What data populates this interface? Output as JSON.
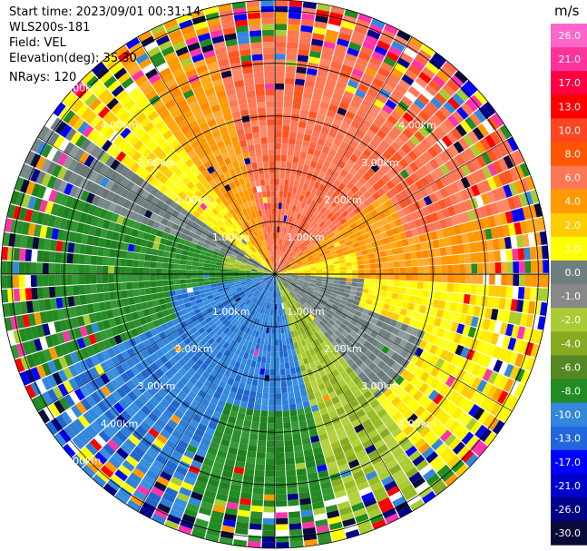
{
  "header": {
    "start_time": "Start time: 2023/09/01 00:31:14",
    "instrument": "WLS200s-181",
    "field": "Field: VEL",
    "elevation": "Elevation(deg): 35.30",
    "nrays": "NRays: 120"
  },
  "plot": {
    "n_rays": 120,
    "range_km_max": 5.2,
    "range_rings_km": [
      1,
      2,
      3,
      4,
      5
    ],
    "ring_label_format": "{v}.00km"
  },
  "colorbar": {
    "unit": "m/s",
    "levels": [
      "26.0",
      "21.0",
      "17.0",
      "13.0",
      "10.0",
      "8.0",
      "6.0",
      "4.0",
      "2.0",
      "1.0",
      "0.0",
      "-1.0",
      "-2.0",
      "-4.0",
      "-6.0",
      "-8.0",
      "-10.0",
      "-13.0",
      "-17.0",
      "-21.0",
      "-26.0",
      "-30.0"
    ],
    "colors": [
      "#ff66cc",
      "#ff3399",
      "#ff0044",
      "#ff0000",
      "#ff4422",
      "#ff5500",
      "#ff7755",
      "#ff9900",
      "#ffcc00",
      "#ffff00",
      "#6f7f7f",
      "#888888",
      "#aacc33",
      "#88aa22",
      "#558822",
      "#228b22",
      "#3388dd",
      "#2266dd",
      "#0000ff",
      "#0000cc",
      "#000088",
      "#0a0a3a"
    ]
  }
}
